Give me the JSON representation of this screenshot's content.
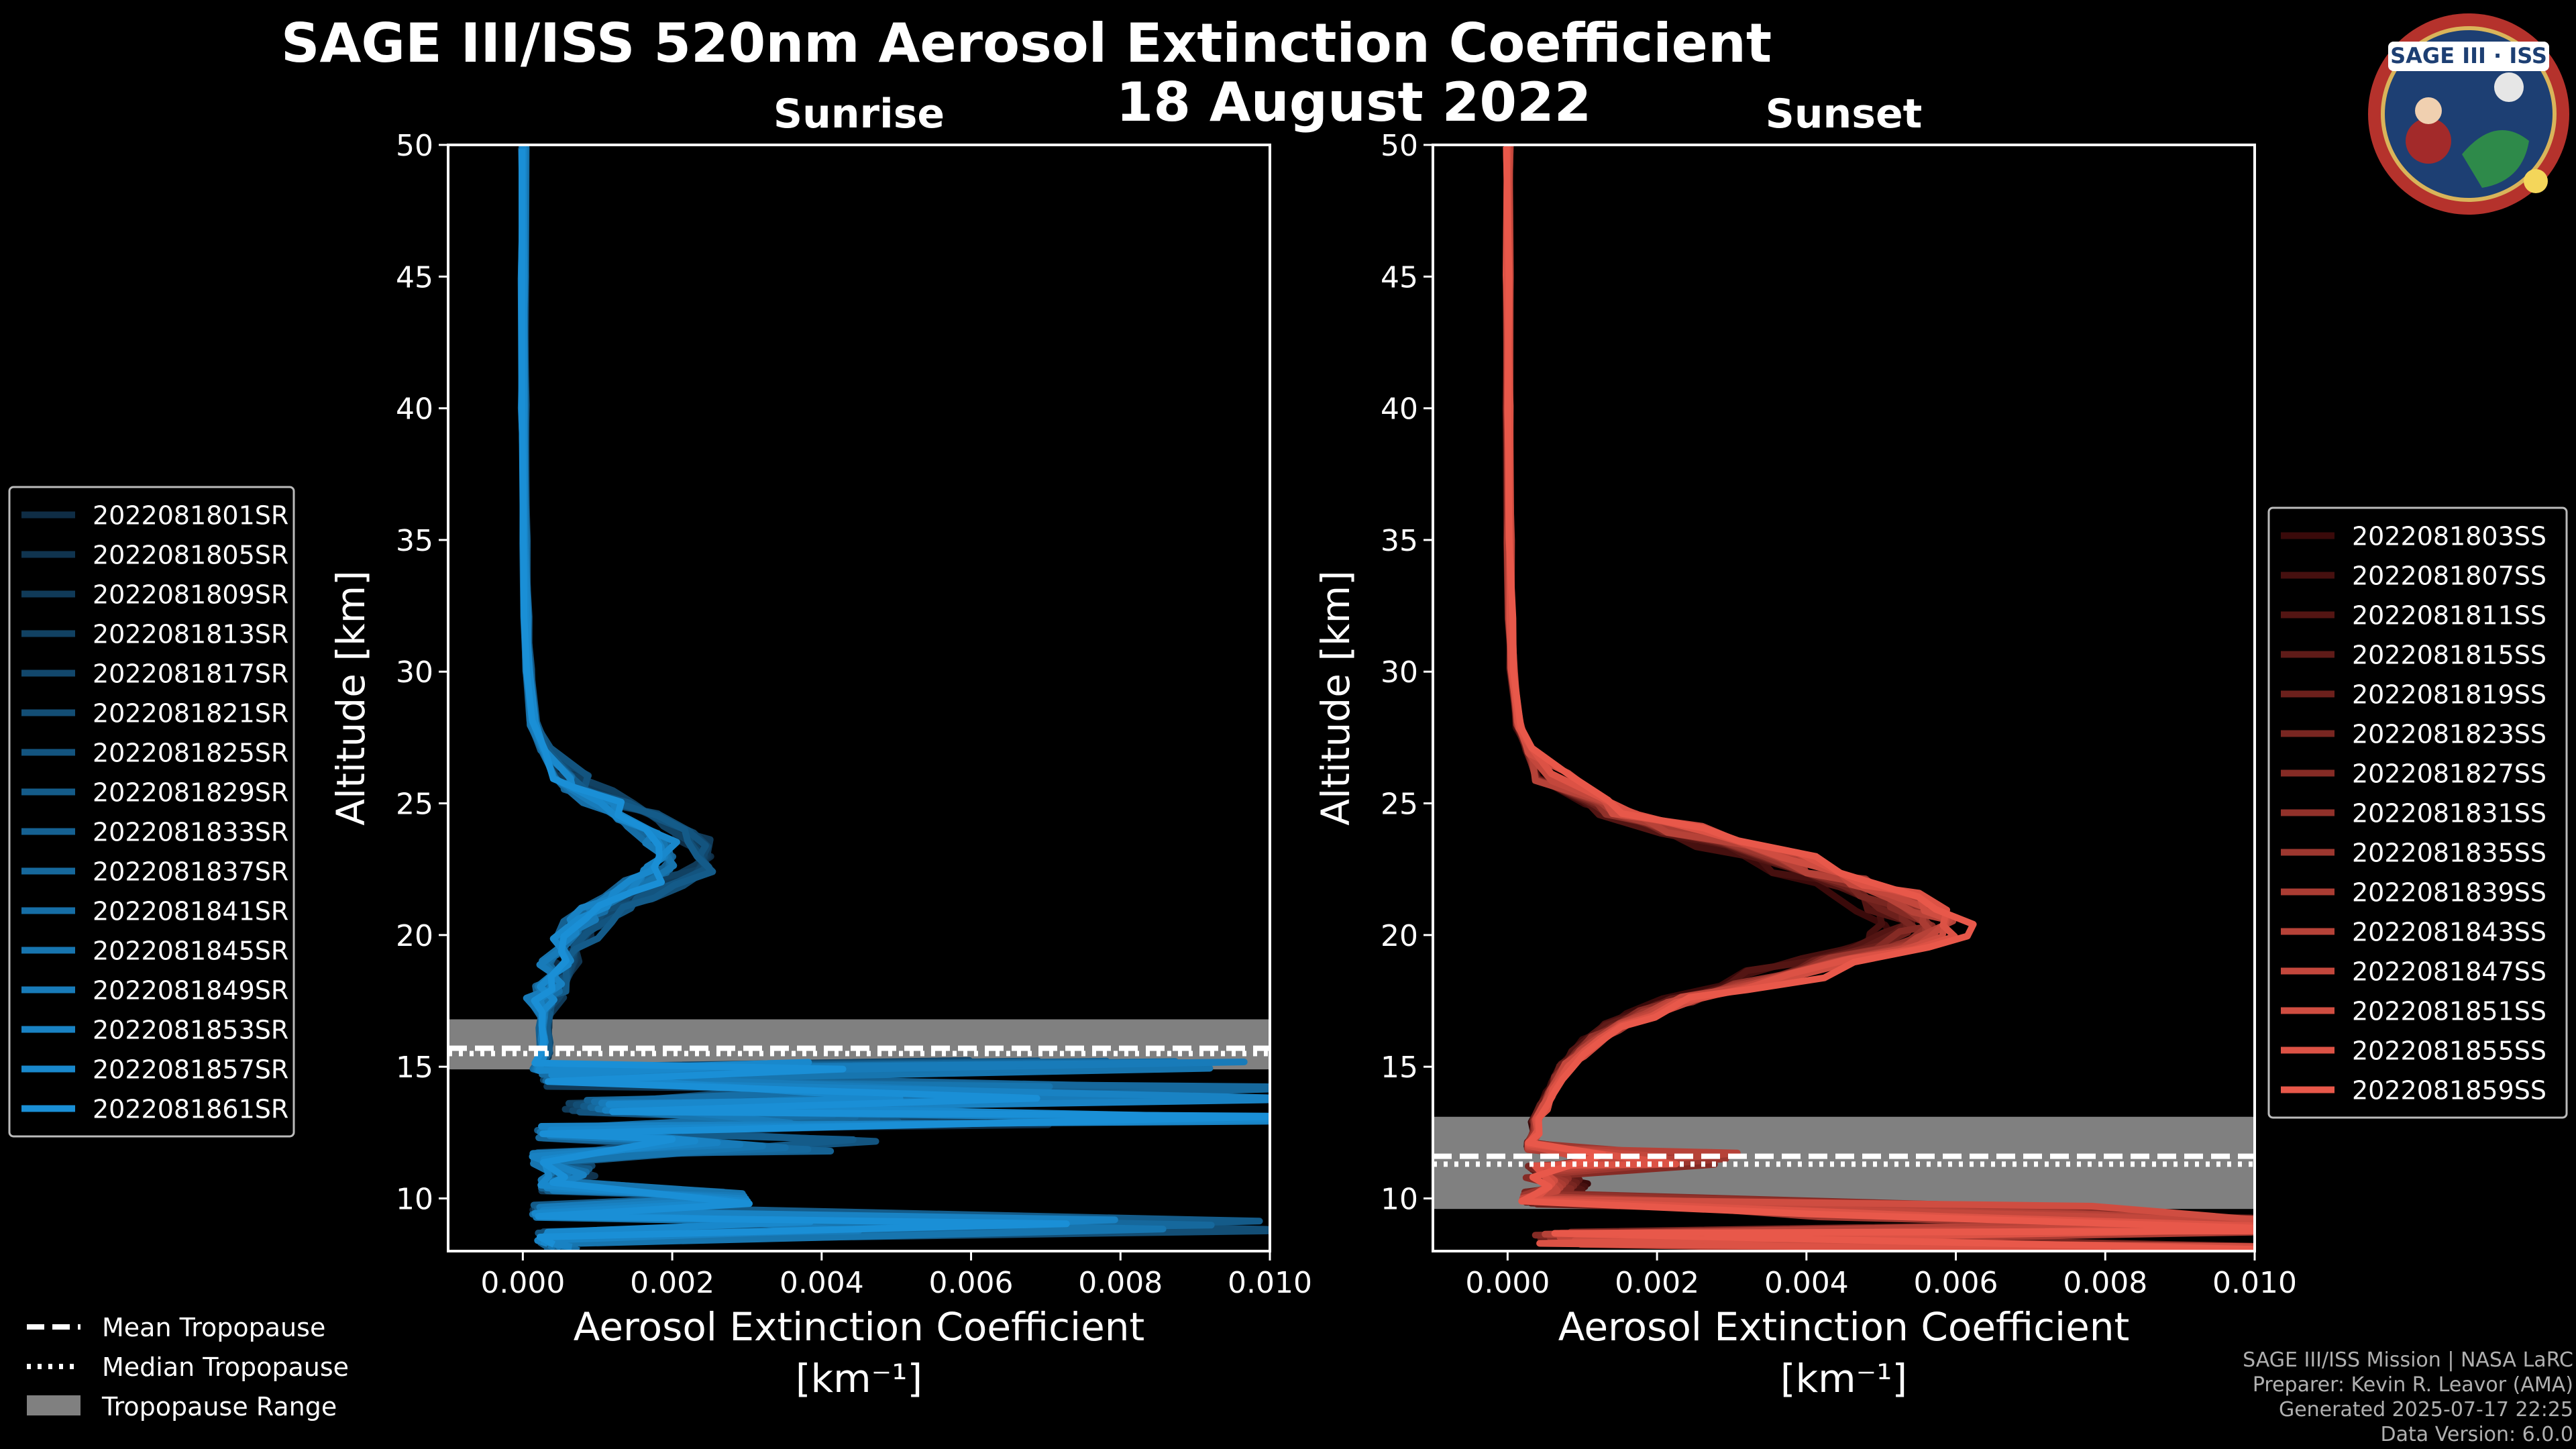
{
  "title": {
    "line1": "SAGE III/ISS 520nm Aerosol Extinction Coefficient",
    "line2": "18 August 2022"
  },
  "badge": {
    "text": "SAGE III · ISS",
    "colors": {
      "ring": "#b5322c",
      "inner": "#1d3f73",
      "gold": "#d9b45a"
    }
  },
  "footer": [
    "SAGE III/ISS Mission | NASA LaRC",
    "Preparer: Kevin R. Leavor (AMA)",
    "Generated 2025-07-17 22:25",
    "Data Version: 6.0.0"
  ],
  "tropo_legend": {
    "mean": "Mean Tropopause",
    "median": "Median Tropopause",
    "range": "Tropopause Range"
  },
  "chart_data": [
    {
      "type": "line",
      "panel": "sunrise",
      "title": "Sunrise",
      "xlabel": "Aerosol Extinction Coefficient",
      "xunit": "[km⁻¹]",
      "ylabel": "Altitude [km]",
      "xlim": [
        -0.001,
        0.01
      ],
      "ylim": [
        8,
        50
      ],
      "xticks": [
        "0.000",
        "0.002",
        "0.004",
        "0.006",
        "0.008",
        "0.010"
      ],
      "xtick_values": [
        0,
        0.002,
        0.004,
        0.006,
        0.008,
        0.01
      ],
      "yticks": [
        "10",
        "15",
        "20",
        "25",
        "30",
        "35",
        "40",
        "45",
        "50"
      ],
      "ytick_values": [
        10,
        15,
        20,
        25,
        30,
        35,
        40,
        45,
        50
      ],
      "legend": "left",
      "tropopause": {
        "mean": 15.7,
        "median": 15.5,
        "range": [
          14.9,
          16.8
        ],
        "color": "#808080"
      },
      "colors": {
        "light": "#1a8fd6",
        "dark": "#0f2d45"
      },
      "series": [
        {
          "name": "2022081801SR"
        },
        {
          "name": "2022081805SR"
        },
        {
          "name": "2022081809SR"
        },
        {
          "name": "2022081813SR"
        },
        {
          "name": "2022081817SR"
        },
        {
          "name": "2022081821SR"
        },
        {
          "name": "2022081825SR"
        },
        {
          "name": "2022081829SR"
        },
        {
          "name": "2022081833SR"
        },
        {
          "name": "2022081837SR"
        },
        {
          "name": "2022081841SR"
        },
        {
          "name": "2022081845SR"
        },
        {
          "name": "2022081849SR"
        },
        {
          "name": "2022081853SR"
        },
        {
          "name": "2022081857SR"
        },
        {
          "name": "2022081861SR"
        }
      ],
      "profile": {
        "y": [
          50,
          45,
          40,
          35,
          32,
          30,
          28,
          27,
          26,
          25.5,
          25,
          24.5,
          24,
          23.5,
          23,
          22.5,
          22,
          21.5,
          21,
          20.5,
          20,
          19.5,
          19,
          18.5,
          18,
          17.5,
          17,
          16.5,
          16,
          15.5,
          15
        ],
        "x": [
          1e-05,
          1e-05,
          1e-05,
          3e-05,
          5e-05,
          8e-05,
          0.00015,
          0.0003,
          0.0006,
          0.0009,
          0.0012,
          0.0016,
          0.0019,
          0.0021,
          0.0022,
          0.0021,
          0.0018,
          0.0014,
          0.0011,
          0.0009,
          0.0007,
          0.0006,
          0.0005,
          0.0004,
          0.00035,
          0.0003,
          0.0003,
          0.0003,
          0.0003,
          0.0003,
          0.0002
        ],
        "below": [
          [
            15,
            0.009
          ],
          [
            14.5,
            0.0004
          ],
          [
            14,
            0.01
          ],
          [
            13.5,
            0.0009
          ],
          [
            13,
            0.01
          ],
          [
            12.5,
            0.0003
          ],
          [
            12,
            0.0045
          ],
          [
            11.5,
            0.0002
          ],
          [
            11,
            0.0009
          ],
          [
            10.5,
            0.0003
          ],
          [
            10,
            0.0035
          ],
          [
            9.5,
            0.0002
          ],
          [
            9,
            0.01
          ],
          [
            8.5,
            0.0003
          ],
          [
            8,
            0.0007
          ]
        ]
      }
    },
    {
      "type": "line",
      "panel": "sunset",
      "title": "Sunset",
      "xlabel": "Aerosol Extinction Coefficient",
      "xunit": "[km⁻¹]",
      "ylabel": "Altitude [km]",
      "xlim": [
        -0.001,
        0.01
      ],
      "ylim": [
        8,
        50
      ],
      "xticks": [
        "0.000",
        "0.002",
        "0.004",
        "0.006",
        "0.008",
        "0.010"
      ],
      "xtick_values": [
        0,
        0.002,
        0.004,
        0.006,
        0.008,
        0.01
      ],
      "yticks": [
        "10",
        "15",
        "20",
        "25",
        "30",
        "35",
        "40",
        "45",
        "50"
      ],
      "ytick_values": [
        10,
        15,
        20,
        25,
        30,
        35,
        40,
        45,
        50
      ],
      "legend": "right",
      "tropopause": {
        "mean": 11.6,
        "median": 11.3,
        "range": [
          9.6,
          13.1
        ],
        "color": "#808080"
      },
      "colors": {
        "light": "#e8584a",
        "dark": "#3a0a0a"
      },
      "series": [
        {
          "name": "2022081803SS"
        },
        {
          "name": "2022081807SS"
        },
        {
          "name": "2022081811SS"
        },
        {
          "name": "2022081815SS"
        },
        {
          "name": "2022081819SS"
        },
        {
          "name": "2022081823SS"
        },
        {
          "name": "2022081827SS"
        },
        {
          "name": "2022081831SS"
        },
        {
          "name": "2022081835SS"
        },
        {
          "name": "2022081839SS"
        },
        {
          "name": "2022081843SS"
        },
        {
          "name": "2022081847SS"
        },
        {
          "name": "2022081851SS"
        },
        {
          "name": "2022081855SS"
        },
        {
          "name": "2022081859SS"
        }
      ],
      "profile": {
        "y": [
          50,
          45,
          40,
          35,
          32,
          30,
          28,
          27,
          26,
          25,
          24.5,
          24,
          23.5,
          23,
          22.5,
          22,
          21.5,
          21,
          20.5,
          20,
          19.5,
          19,
          18.5,
          18,
          17.5,
          17,
          16.5,
          16,
          15.5,
          15,
          14.5,
          14,
          13.5,
          13,
          12.5,
          12
        ],
        "x": [
          1e-05,
          1e-05,
          1e-05,
          2e-05,
          4e-05,
          7e-05,
          0.00015,
          0.0003,
          0.0006,
          0.0011,
          0.0016,
          0.0024,
          0.0031,
          0.0038,
          0.0043,
          0.0048,
          0.0053,
          0.0057,
          0.0059,
          0.0058,
          0.0054,
          0.0047,
          0.0039,
          0.0031,
          0.0024,
          0.0019,
          0.0015,
          0.0012,
          0.001,
          0.0008,
          0.0007,
          0.0006,
          0.0005,
          0.0004,
          0.0004,
          0.0003
        ],
        "below": [
          [
            11.5,
            0.0028
          ],
          [
            11,
            0.0004
          ],
          [
            10.5,
            0.0011
          ],
          [
            10,
            0.0003
          ],
          [
            9.5,
            0.0075
          ],
          [
            9,
            0.01
          ],
          [
            8.5,
            0.0009
          ],
          [
            8,
            0.01
          ]
        ]
      }
    }
  ]
}
